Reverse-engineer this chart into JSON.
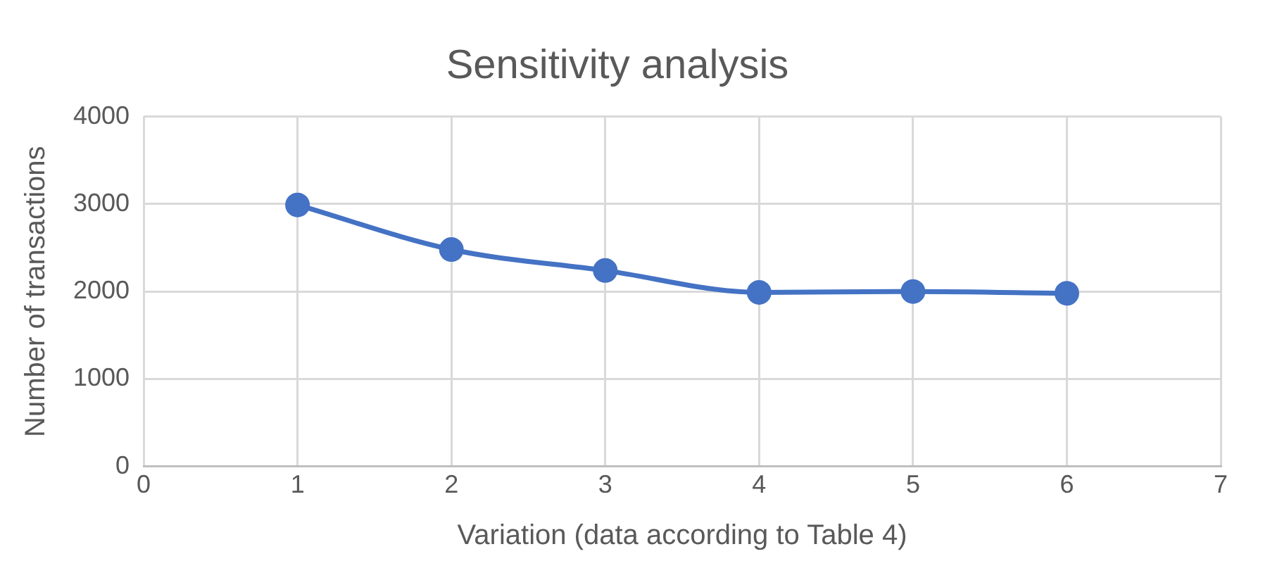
{
  "chart_data": {
    "type": "line",
    "title": "Sensitivity analysis",
    "xlabel": "Variation (data according to Table 4)",
    "ylabel": "Number of transactions",
    "x": [
      1,
      2,
      3,
      4,
      5,
      6
    ],
    "series": [
      {
        "color": "#4472c4",
        "values": [
          2990,
          2480,
          2240,
          1990,
          2000,
          1980
        ]
      }
    ],
    "xlim": [
      0,
      7
    ],
    "xticks": [
      0,
      1,
      2,
      3,
      4,
      5,
      6,
      7
    ],
    "ylim": [
      0,
      4000
    ],
    "yticks": [
      0,
      1000,
      2000,
      3000,
      4000
    ],
    "grid": true,
    "legend": false,
    "marker": "circle",
    "line_style": "solid"
  }
}
